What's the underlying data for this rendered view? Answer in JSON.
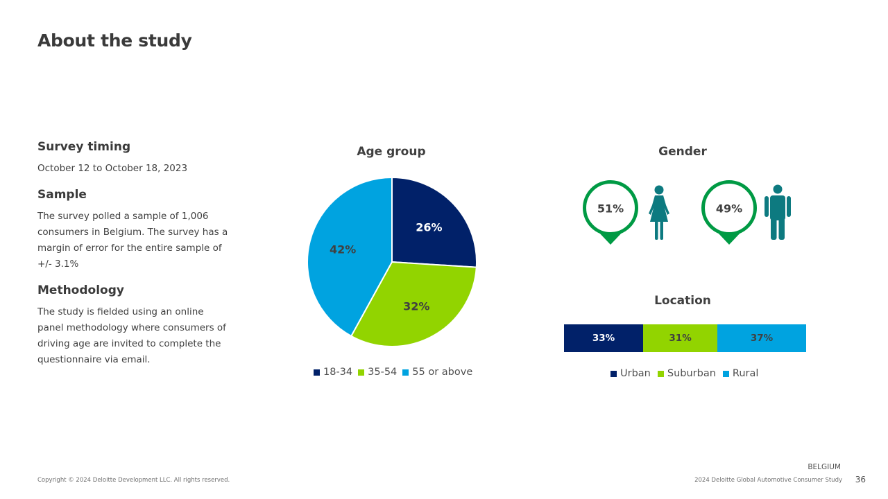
{
  "title": "About the study",
  "sections": {
    "timing": {
      "heading": "Survey timing",
      "text": "October 12 to October 18, 2023"
    },
    "sample": {
      "heading": "Sample",
      "text": "The survey polled a sample of 1,006 consumers in Belgium. The survey has a margin of error for the entire sample of +/- 3.1%"
    },
    "methodology": {
      "heading": "Methodology",
      "text": "The study is fielded using an online panel methodology where consumers of driving age are invited to complete the questionnaire via email."
    }
  },
  "chart_data": [
    {
      "type": "pie",
      "title": "Age group",
      "categories": [
        "18-34",
        "35-54",
        "55 or above"
      ],
      "values": [
        26,
        32,
        42
      ],
      "labels": [
        "26%",
        "32%",
        "42%"
      ],
      "colors": [
        "#012169",
        "#92D400",
        "#00A3E0"
      ],
      "label_colors": [
        "#ffffff",
        "#404040",
        "#404040"
      ],
      "legend": "bottom"
    },
    {
      "type": "pictograph",
      "title": "Gender",
      "categories": [
        "female",
        "male"
      ],
      "values": [
        51,
        49
      ],
      "labels": [
        "51%",
        "49%"
      ],
      "icons": [
        "female-person-icon",
        "male-person-icon"
      ],
      "marker_color": "#009A44",
      "icon_color": "#0D7A80"
    },
    {
      "type": "bar",
      "stacked": true,
      "orientation": "horizontal",
      "title": "Location",
      "categories": [
        "Urban",
        "Suburban",
        "Rural"
      ],
      "values": [
        33,
        31,
        37
      ],
      "labels": [
        "33%",
        "31%",
        "37%"
      ],
      "colors": [
        "#012169",
        "#92D400",
        "#00A3E0"
      ],
      "label_colors": [
        "#ffffff",
        "#404040",
        "#404040"
      ],
      "legend": "bottom"
    }
  ],
  "footer": {
    "country": "BELGIUM",
    "copyright": "Copyright © 2024 Deloitte Development LLC. All rights reserved.",
    "study": "2024 Deloitte Global Automotive Consumer Study",
    "page": "36"
  }
}
